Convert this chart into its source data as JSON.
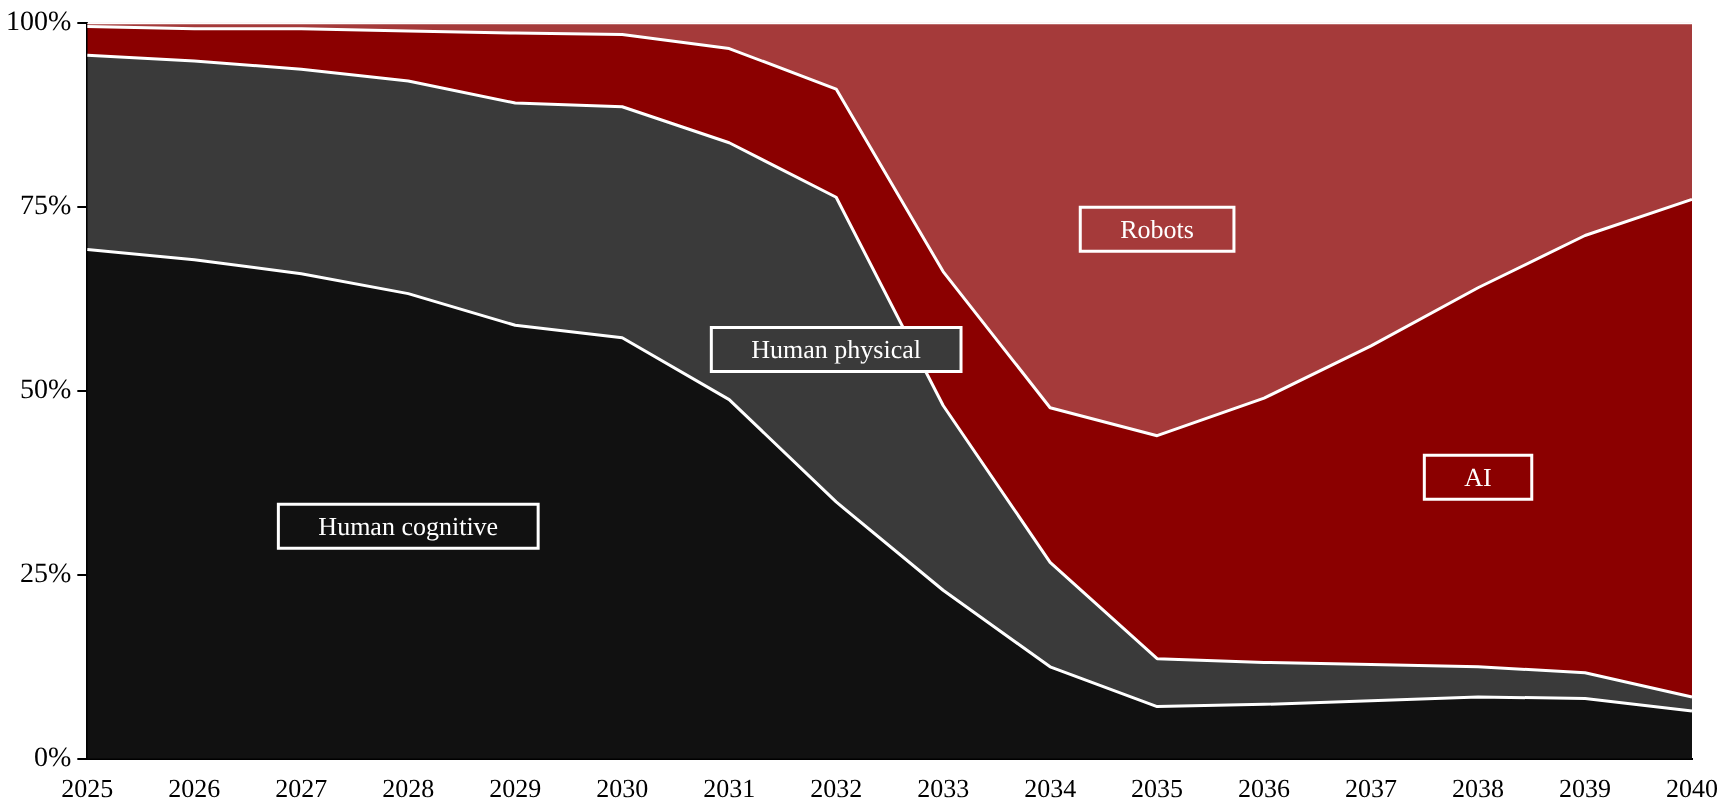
{
  "chart_data": {
    "type": "area",
    "stacked": true,
    "legend": false,
    "grid": false,
    "categories": [
      "2025",
      "2026",
      "2027",
      "2028",
      "2029",
      "2030",
      "2031",
      "2032",
      "2033",
      "2034",
      "2035",
      "2036",
      "2037",
      "2038",
      "2039",
      "2040"
    ],
    "ylim": [
      0,
      100
    ],
    "yticks": [
      {
        "value": 0,
        "label": "0%"
      },
      {
        "value": 25,
        "label": "25%"
      },
      {
        "value": 50,
        "label": "50%"
      },
      {
        "value": 75,
        "label": "75%"
      },
      {
        "value": 100,
        "label": "100%"
      }
    ],
    "series": [
      {
        "name": "Human cognitive",
        "color": "#111111",
        "values": [
          69.2,
          67.8,
          65.9,
          63.2,
          58.9,
          57.2,
          48.8,
          34.9,
          22.9,
          12.5,
          7.1,
          7.4,
          7.9,
          8.4,
          8.2,
          6.5
        ]
      },
      {
        "name": "Human physical",
        "color": "#3a3a3a",
        "values": [
          26.4,
          27.0,
          27.8,
          28.9,
          30.2,
          31.4,
          34.9,
          41.4,
          25.1,
          14.2,
          6.5,
          5.7,
          4.9,
          4.1,
          3.5,
          1.9
        ]
      },
      {
        "name": "AI",
        "color": "#8b0000",
        "values": [
          3.9,
          4.4,
          5.5,
          6.8,
          9.5,
          9.8,
          12.8,
          14.7,
          18.2,
          21.0,
          30.3,
          35.9,
          43.3,
          51.5,
          59.4,
          67.6
        ]
      },
      {
        "name": "Robots",
        "color": "#a53a3a",
        "values": [
          0.5,
          0.8,
          0.8,
          1.1,
          1.4,
          1.6,
          3.5,
          9.0,
          33.8,
          52.3,
          56.1,
          51.0,
          43.9,
          36.0,
          28.9,
          24.0
        ]
      }
    ]
  }
}
